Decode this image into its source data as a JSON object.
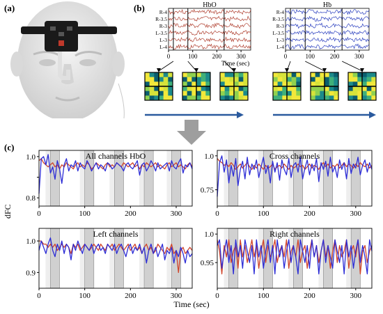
{
  "panels": {
    "a": {
      "label": "(a)",
      "device_colors": {
        "skin": "#e6e6e6",
        "band": "#1a1a1a",
        "optode": "#c0392b"
      }
    },
    "b": {
      "label": "(b)",
      "arrow_color": "#2a5a9e",
      "signal_plots": [
        {
          "title": "HbO",
          "color": "#b04030",
          "channels": [
            "R-4",
            "R-3.5",
            "R-3",
            "L-3.5",
            "L-3",
            "L-4"
          ],
          "xticks": [
            0,
            100,
            200,
            300
          ],
          "xlim": [
            0,
            340
          ],
          "markers": [
            20,
            80,
            230
          ]
        },
        {
          "title": "Hb",
          "color": "#2a3fbf",
          "channels": [
            "R-4",
            "R-3.5",
            "R-3",
            "L-3.5",
            "L-3",
            "L-4"
          ],
          "xticks": [
            0,
            100,
            200,
            300
          ],
          "xlim": [
            0,
            340
          ],
          "markers": [
            20,
            80,
            230
          ]
        }
      ],
      "xlabel": "Time (sec)",
      "matrix_colors": [
        "#0b5e6e",
        "#1c8a8a",
        "#3fb07a",
        "#8fd14f",
        "#d6e33a",
        "#f2e83a"
      ]
    },
    "flow_arrow_color": "#9e9e9e",
    "c": {
      "label": "(c)",
      "ylabel": "dFC",
      "xlabel": "Time (sec)"
    }
  },
  "chart_data": [
    {
      "type": "line",
      "title": "All channels HbO",
      "xticks": [
        0,
        100,
        200,
        300
      ],
      "yticks": [
        0.8,
        0.9,
        1.0
      ],
      "ytick_labels": [
        "0.8",
        "",
        "1.0"
      ],
      "ylim": [
        0.76,
        1.03
      ],
      "xlim": [
        0,
        335
      ],
      "shaded_blocks": [
        [
          25,
          45
        ],
        [
          100,
          120
        ],
        [
          165,
          185
        ],
        [
          230,
          250
        ],
        [
          290,
          310
        ]
      ],
      "series": [
        {
          "color": "#d0442a",
          "values": [
            0.98,
            0.99,
            0.97,
            0.96,
            0.95,
            0.96,
            0.97,
            0.95,
            0.96,
            0.94,
            0.96,
            0.95,
            0.97,
            0.96,
            0.95,
            0.94,
            0.96,
            0.97,
            0.95,
            0.96,
            0.95,
            0.97,
            0.96,
            0.94,
            0.95,
            0.97,
            0.96,
            0.95,
            0.94,
            0.96,
            0.97,
            0.95,
            0.96,
            0.95,
            0.97,
            0.96,
            0.95,
            0.97,
            0.96,
            0.95,
            0.96,
            0.97,
            0.95,
            0.96,
            0.94,
            0.96,
            0.95,
            0.97,
            0.96,
            0.95,
            0.96,
            0.97,
            0.95,
            0.96,
            0.95,
            0.94,
            0.96,
            0.97,
            0.95,
            0.96,
            0.97,
            0.95,
            0.96,
            0.95,
            0.94,
            0.96,
            0.97,
            0.95
          ]
        },
        {
          "color": "#2b2bd6",
          "values": [
            0.82,
            0.99,
            1.0,
            0.96,
            1.01,
            0.92,
            0.95,
            0.89,
            0.98,
            0.94,
            0.87,
            0.96,
            0.99,
            0.93,
            0.96,
            0.95,
            0.98,
            0.93,
            0.97,
            0.95,
            0.94,
            0.98,
            0.96,
            0.93,
            0.95,
            0.97,
            0.94,
            0.96,
            0.95,
            0.93,
            0.97,
            0.96,
            0.94,
            0.95,
            0.97,
            0.96,
            0.95,
            0.93,
            0.96,
            0.97,
            0.95,
            0.94,
            0.96,
            0.98,
            0.91,
            0.96,
            0.97,
            0.93,
            0.95,
            0.98,
            0.96,
            0.93,
            0.97,
            0.94,
            0.95,
            0.96,
            0.97,
            0.93,
            0.98,
            0.95,
            0.94,
            0.97,
            0.99,
            0.92,
            0.96,
            0.95,
            0.97,
            0.94
          ]
        }
      ]
    },
    {
      "type": "line",
      "title": "Cross channels",
      "xticks": [
        0,
        100,
        200,
        300
      ],
      "yticks": [
        0.75,
        1.0
      ],
      "ylim": [
        0.63,
        1.04
      ],
      "xlim": [
        0,
        335
      ],
      "shaded_blocks": [
        [
          25,
          45
        ],
        [
          100,
          120
        ],
        [
          165,
          185
        ],
        [
          230,
          250
        ],
        [
          290,
          310
        ]
      ],
      "series": [
        {
          "color": "#d0442a",
          "values": [
            0.98,
            0.96,
            0.95,
            0.93,
            0.94,
            0.92,
            0.95,
            0.93,
            0.9,
            0.92,
            0.94,
            0.91,
            0.93,
            0.95,
            0.92,
            0.9,
            0.93,
            0.91,
            0.94,
            0.92,
            0.9,
            0.93,
            0.91,
            0.92,
            0.94,
            0.9,
            0.92,
            0.93,
            0.91,
            0.94,
            0.92,
            0.9,
            0.93,
            0.91,
            0.92,
            0.94,
            0.92,
            0.93,
            0.9,
            0.92,
            0.94,
            0.91,
            0.93,
            0.92,
            0.9,
            0.93,
            0.95,
            0.92,
            0.94,
            0.91,
            0.93,
            0.92,
            0.94,
            0.91,
            0.93,
            0.95,
            0.92,
            0.94,
            0.93,
            0.91,
            0.94,
            0.92,
            0.95,
            0.93,
            0.92,
            0.94,
            0.91,
            0.93
          ]
        },
        {
          "color": "#2b2bd6",
          "values": [
            0.7,
            0.95,
            1.0,
            0.88,
            0.97,
            0.8,
            0.93,
            0.85,
            0.98,
            0.78,
            0.9,
            0.96,
            0.83,
            0.99,
            0.86,
            0.94,
            0.9,
            0.97,
            0.84,
            0.92,
            0.99,
            0.87,
            0.93,
            0.8,
            0.96,
            0.88,
            0.95,
            0.82,
            0.97,
            0.9,
            0.86,
            0.98,
            0.84,
            0.93,
            0.95,
            0.88,
            0.99,
            0.83,
            0.91,
            0.97,
            0.86,
            0.94,
            0.89,
            0.98,
            0.81,
            0.95,
            0.9,
            0.96,
            0.85,
            0.99,
            0.88,
            0.92,
            0.84,
            0.97,
            0.9,
            0.95,
            0.83,
            0.98,
            0.87,
            0.94,
            0.91,
            0.99,
            0.86,
            0.93,
            0.97,
            0.88,
            0.95,
            0.9
          ]
        }
      ]
    },
    {
      "type": "line",
      "title": "Left channels",
      "xticks": [
        0,
        100,
        200,
        300
      ],
      "yticks": [
        0.9,
        1.0
      ],
      "ylim": [
        0.85,
        1.04
      ],
      "xlim": [
        0,
        335
      ],
      "shaded_blocks": [
        [
          25,
          45
        ],
        [
          100,
          120
        ],
        [
          165,
          185
        ],
        [
          230,
          250
        ],
        [
          290,
          310
        ]
      ],
      "series": [
        {
          "color": "#d0442a",
          "values": [
            1.0,
            1.0,
            0.99,
            0.99,
            0.98,
            0.99,
            0.98,
            0.99,
            0.97,
            0.98,
            0.99,
            0.98,
            0.99,
            0.98,
            0.96,
            0.99,
            0.98,
            0.99,
            0.97,
            0.98,
            0.99,
            0.98,
            0.97,
            0.98,
            0.99,
            0.98,
            0.97,
            0.99,
            0.98,
            0.97,
            0.99,
            0.98,
            0.99,
            0.97,
            0.98,
            0.99,
            0.98,
            0.97,
            0.98,
            0.99,
            0.97,
            0.98,
            0.99,
            0.97,
            0.98,
            0.96,
            0.98,
            0.99,
            0.97,
            0.98,
            0.96,
            0.97,
            0.99,
            0.98,
            0.97,
            0.96,
            0.98,
            0.97,
            0.99,
            0.96,
            0.97,
            0.9,
            0.97,
            0.98,
            0.96,
            0.97,
            0.98,
            0.97
          ]
        },
        {
          "color": "#2b2bd6",
          "values": [
            0.97,
            1.0,
            0.98,
            0.96,
            0.99,
            1.01,
            0.97,
            0.95,
            0.99,
            0.97,
            1.0,
            0.96,
            0.99,
            0.98,
            0.94,
            0.99,
            0.97,
            1.0,
            0.98,
            0.96,
            0.99,
            0.98,
            0.97,
            0.99,
            0.96,
            0.98,
            0.99,
            0.97,
            0.98,
            0.96,
            0.99,
            0.98,
            0.97,
            0.99,
            0.96,
            0.98,
            0.99,
            0.97,
            0.95,
            0.98,
            0.99,
            0.96,
            0.98,
            0.97,
            0.99,
            0.96,
            0.98,
            0.93,
            0.97,
            0.99,
            0.96,
            0.98,
            0.95,
            0.97,
            0.99,
            0.94,
            0.97,
            0.96,
            0.98,
            0.93,
            0.97,
            0.95,
            0.98,
            0.96,
            0.93,
            0.97,
            0.95,
            0.96
          ]
        }
      ]
    },
    {
      "type": "line",
      "title": "Right channels",
      "xticks": [
        0,
        100,
        200,
        300
      ],
      "yticks": [
        0.95,
        1.0
      ],
      "ylim": [
        0.905,
        1.01
      ],
      "xlim": [
        0,
        335
      ],
      "shaded_blocks": [
        [
          25,
          45
        ],
        [
          100,
          120
        ],
        [
          165,
          185
        ],
        [
          230,
          250
        ],
        [
          290,
          310
        ]
      ],
      "series": [
        {
          "color": "#d0442a",
          "values": [
            0.99,
            0.97,
            0.93,
            0.98,
            0.96,
            0.99,
            0.95,
            0.97,
            0.98,
            0.94,
            0.99,
            0.96,
            0.98,
            0.95,
            0.97,
            0.99,
            0.96,
            0.98,
            0.94,
            0.97,
            0.99,
            0.95,
            0.98,
            0.96,
            0.97,
            0.99,
            0.95,
            0.97,
            0.98,
            0.96,
            0.99,
            0.94,
            0.97,
            0.98,
            0.96,
            0.99,
            0.95,
            0.97,
            0.98,
            0.94,
            0.97,
            0.99,
            0.96,
            0.98,
            0.95,
            0.97,
            0.99,
            0.96,
            0.98,
            0.94,
            0.97,
            0.99,
            0.95,
            0.98,
            0.96,
            0.97,
            0.99,
            0.94,
            0.97,
            0.98,
            0.96,
            0.99,
            0.93,
            0.97,
            0.98,
            0.95,
            0.97,
            0.98
          ]
        },
        {
          "color": "#2b2bd6",
          "values": [
            0.98,
            0.99,
            0.94,
            0.97,
            0.99,
            0.95,
            0.98,
            0.93,
            0.99,
            0.96,
            0.98,
            0.94,
            0.99,
            0.97,
            0.95,
            0.98,
            0.93,
            0.99,
            0.96,
            0.98,
            0.94,
            0.97,
            0.99,
            0.95,
            0.98,
            0.93,
            0.99,
            0.96,
            0.98,
            0.94,
            0.97,
            0.99,
            0.95,
            0.98,
            0.96,
            0.93,
            0.99,
            0.97,
            0.95,
            0.98,
            0.94,
            0.99,
            0.96,
            0.98,
            0.93,
            0.97,
            0.99,
            0.95,
            0.98,
            0.96,
            0.94,
            0.99,
            0.97,
            0.95,
            0.98,
            0.93,
            0.99,
            0.96,
            0.98,
            0.94,
            0.97,
            0.99,
            0.95,
            0.98,
            0.96,
            0.93,
            0.99,
            0.97
          ]
        }
      ]
    }
  ]
}
